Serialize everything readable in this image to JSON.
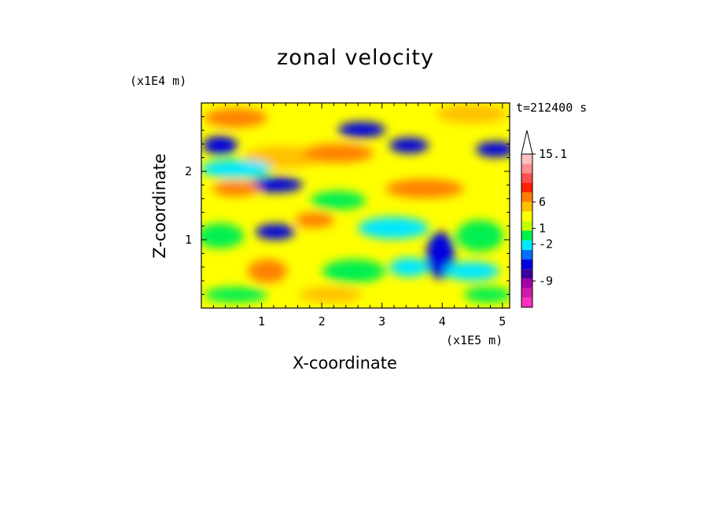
{
  "chart_data": {
    "type": "heatmap",
    "title": "zonal velocity",
    "xlabel": "X-coordinate",
    "ylabel": "Z-coordinate",
    "x_scale_note": "(x1E5 m)",
    "z_scale_note": "(x1E4 m)",
    "time_label": "t=212400 s",
    "x_ticks": [
      "1",
      "2",
      "3",
      "4",
      "5"
    ],
    "x_tick_values": [
      1,
      2,
      3,
      4,
      5
    ],
    "y_ticks": [
      "1",
      "2"
    ],
    "y_tick_values": [
      1,
      2
    ],
    "xlim": [
      0,
      5.12
    ],
    "ylim": [
      0,
      3.0
    ],
    "colorbar": {
      "colors": [
        "#ff2fbf",
        "#d01aa8",
        "#a300a8",
        "#3a00a0",
        "#0000e0",
        "#0070ff",
        "#00e8ff",
        "#00f050",
        "#c0ff00",
        "#ffff00",
        "#ffc000",
        "#ff8000",
        "#ff2000",
        "#ff5050",
        "#ff9090",
        "#ffc0c0"
      ],
      "labels": [
        "-9",
        "-2",
        "1",
        "6",
        "15.1"
      ],
      "label_values": [
        -9,
        -2,
        1,
        6,
        15.1
      ]
    }
  }
}
